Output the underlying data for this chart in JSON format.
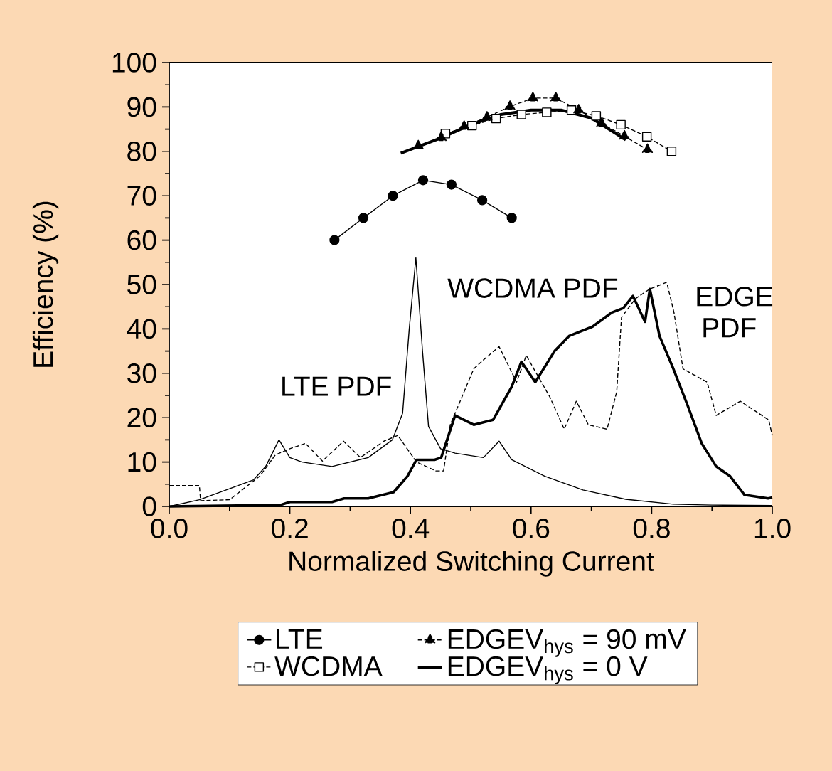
{
  "chart_data": {
    "type": "line",
    "xlabel": "Normalized Switching Current",
    "ylabel": "Efficiency (%)",
    "xlim": [
      0,
      1
    ],
    "ylim": [
      0,
      100
    ],
    "xticks": [
      {
        "value": 0,
        "label": "0.0"
      },
      {
        "value": 0.2,
        "label": "0.2"
      },
      {
        "value": 0.4,
        "label": "0.4"
      },
      {
        "value": 0.6,
        "label": "0.6"
      },
      {
        "value": 0.8,
        "label": "0.8"
      },
      {
        "value": 1,
        "label": "1.0"
      }
    ],
    "yticks": [
      0,
      10,
      20,
      30,
      40,
      50,
      60,
      70,
      80,
      90,
      100
    ],
    "legend": "bottom",
    "annotations": [
      {
        "text": "LTE PDF",
        "x": 0.39,
        "y": 20
      },
      {
        "text": "WCDMA PDF",
        "x": 0.655,
        "y": 37
      },
      {
        "text": "EDGE PDF",
        "x": 0.867,
        "y": 31
      }
    ],
    "series": [
      {
        "name": "LTE",
        "color": "#000000",
        "marker": "circle",
        "line_style": "solid",
        "x": [
          0.274,
          0.322,
          0.371,
          0.421,
          0.468,
          0.519,
          0.568
        ],
        "values": [
          60,
          65,
          70,
          73.5,
          72.5,
          69,
          65
        ]
      },
      {
        "name": "WCDMA",
        "color": "#000000",
        "marker": "square",
        "line_style": "dashed",
        "x": [
          0.458,
          0.502,
          0.542,
          0.584,
          0.626,
          0.667,
          0.708,
          0.749,
          0.792,
          0.833
        ],
        "values": [
          84,
          85.8,
          87.4,
          88.3,
          88.8,
          89.3,
          88,
          86,
          83.3,
          80
        ]
      },
      {
        "name": "EDGEV$_{hys}$ = 90 mV",
        "color": "#000000",
        "marker": "triangle",
        "line_style": "dashed",
        "x": [
          0.413,
          0.451,
          0.489,
          0.527,
          0.565,
          0.603,
          0.641,
          0.679,
          0.717,
          0.755,
          0.793
        ],
        "values": [
          81.2,
          83.1,
          85.6,
          87.7,
          90.1,
          92,
          92,
          89.3,
          86.3,
          83.4,
          80.4
        ]
      },
      {
        "name": "EDGEV$_{hys}$ = 0 V",
        "color": "#000000",
        "marker": "none",
        "line_style": "solid",
        "x": [
          0.384,
          0.45,
          0.5,
          0.55,
          0.6,
          0.65,
          0.7,
          0.757
        ],
        "values": [
          79.6,
          83,
          86,
          88.3,
          89.3,
          89.3,
          87.5,
          82.6
        ]
      },
      {
        "color": "#000000",
        "marker": "none",
        "line_style": "solid",
        "x": [
          0,
          0.05,
          0.1,
          0.14,
          0.16,
          0.182,
          0.2,
          0.22,
          0.27,
          0.33,
          0.37,
          0.387,
          0.398,
          0.409,
          0.42,
          0.43,
          0.45,
          0.474,
          0.521,
          0.547,
          0.568,
          0.623,
          0.686,
          0.757,
          0.836,
          0.9,
          1.0
        ],
        "values": [
          0,
          1.5,
          4,
          6,
          9,
          15,
          11,
          10,
          9,
          11,
          15,
          21,
          40,
          56,
          35,
          18,
          13,
          12,
          11,
          14.7,
          10.5,
          6.8,
          3.7,
          1.6,
          0.5,
          0.3,
          0.2
        ]
      },
      {
        "color": "#000000",
        "marker": "none",
        "line_style": "solid",
        "x": [
          0,
          0.184,
          0.2,
          0.27,
          0.29,
          0.33,
          0.372,
          0.395,
          0.41,
          0.44,
          0.451,
          0.474,
          0.505,
          0.537,
          0.568,
          0.584,
          0.607,
          0.639,
          0.663,
          0.702,
          0.734,
          0.753,
          0.769,
          0.789,
          0.797,
          0.813,
          0.836,
          0.86,
          0.883,
          0.907,
          0.93,
          0.954,
          0.993,
          1.0
        ],
        "values": [
          0,
          0.3,
          1,
          1,
          1.8,
          1.8,
          3.2,
          6.8,
          10.5,
          10.5,
          11,
          20.5,
          18.4,
          19.5,
          27,
          32.6,
          28,
          35,
          38.4,
          40.5,
          43.7,
          44.7,
          47.4,
          41.6,
          49,
          38.4,
          31,
          22.6,
          14.2,
          9,
          6.8,
          2.6,
          1.8,
          2
        ]
      },
      {
        "color": "#000000",
        "marker": "none",
        "line_style": "dashed",
        "x": [
          0,
          0.05,
          0.052,
          0.1,
          0.15,
          0.176,
          0.2,
          0.226,
          0.254,
          0.289,
          0.317,
          0.356,
          0.379,
          0.41,
          0.442,
          0.455,
          0.466,
          0.505,
          0.521,
          0.547,
          0.576,
          0.592,
          0.631,
          0.655,
          0.675,
          0.695,
          0.726,
          0.742,
          0.75,
          0.773,
          0.797,
          0.825,
          0.837,
          0.852,
          0.892,
          0.907,
          0.947,
          0.994,
          1.0
        ],
        "values": [
          4.7,
          4.7,
          1.3,
          1.5,
          6.8,
          11.6,
          13,
          14.2,
          10.2,
          14.7,
          11,
          14.7,
          16,
          10,
          8,
          8,
          18.4,
          31,
          33,
          36,
          28,
          34,
          24.7,
          17.4,
          23.7,
          18.4,
          17.4,
          25.8,
          42.6,
          46.8,
          49,
          50.5,
          43.7,
          31,
          28,
          20.5,
          23.7,
          19.5,
          16
        ]
      }
    ]
  }
}
